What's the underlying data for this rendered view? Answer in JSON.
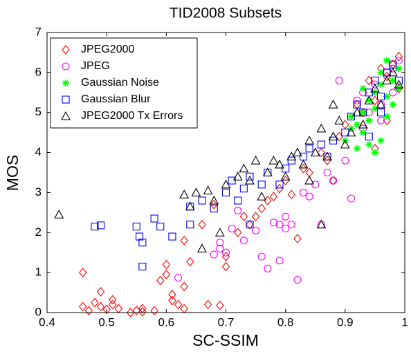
{
  "chart_data": {
    "type": "scatter",
    "title": "TID2008 Subsets",
    "x_label": "SC-SSIM",
    "y_label": "MOS",
    "xlim": [
      0.4,
      1
    ],
    "ylim": [
      0,
      7
    ],
    "xticks": [
      0.4,
      0.5,
      0.6,
      0.7,
      0.8,
      0.9,
      1
    ],
    "yticks": [
      0,
      1,
      2,
      3,
      4,
      5,
      6,
      7
    ],
    "legend": "upper left",
    "series": [
      {
        "name": "JPEG2000",
        "color": "#ff0000",
        "marker": "diamond",
        "x": [
          0.46,
          0.46,
          0.47,
          0.48,
          0.49,
          0.49,
          0.5,
          0.51,
          0.51,
          0.52,
          0.54,
          0.55,
          0.56,
          0.56,
          0.58,
          0.59,
          0.6,
          0.6,
          0.61,
          0.61,
          0.62,
          0.63,
          0.63,
          0.64,
          0.67,
          0.69,
          0.63,
          0.66,
          0.68,
          0.7,
          0.7,
          0.72,
          0.73,
          0.75,
          0.76,
          0.78,
          0.79,
          0.8,
          0.82,
          0.83,
          0.84,
          0.86,
          0.88,
          0.89,
          0.9,
          0.92,
          0.93,
          0.94,
          0.95,
          0.96,
          0.97,
          0.98,
          0.99,
          0.99,
          0.97,
          0.95,
          0.87,
          0.81,
          0.77,
          0.74
        ],
        "values": [
          1.0,
          0.15,
          0.05,
          0.25,
          0.52,
          0.15,
          0.08,
          0.2,
          0.32,
          0.1,
          0.0,
          0.05,
          0.1,
          0.02,
          0.05,
          0.8,
          0.95,
          1.2,
          0.45,
          0.3,
          0.2,
          0.1,
          0.65,
          1.27,
          0.2,
          0.18,
          1.8,
          2.2,
          2.7,
          1.15,
          1.4,
          2.0,
          2.4,
          2.4,
          2.6,
          2.9,
          3.1,
          3.3,
          1.85,
          3.6,
          3.5,
          4.0,
          3.3,
          4.4,
          4.7,
          5.2,
          5.0,
          5.8,
          5.3,
          6.1,
          5.9,
          6.2,
          6.4,
          5.6,
          4.8,
          4.1,
          3.8,
          2.95,
          2.8,
          2.2
        ]
      },
      {
        "name": "JPEG",
        "color": "#ff00ff",
        "marker": "circle",
        "x": [
          0.62,
          0.68,
          0.69,
          0.69,
          0.7,
          0.71,
          0.72,
          0.73,
          0.75,
          0.76,
          0.77,
          0.78,
          0.79,
          0.79,
          0.8,
          0.81,
          0.82,
          0.83,
          0.85,
          0.86,
          0.88,
          0.87,
          0.9,
          0.91,
          0.89,
          0.92,
          0.93,
          0.94,
          0.95,
          0.96,
          0.97,
          0.98,
          0.99,
          0.93,
          0.84,
          0.8,
          0.96,
          0.98
        ],
        "values": [
          0.87,
          1.45,
          1.6,
          1.75,
          1.5,
          2.1,
          2.55,
          1.8,
          2.05,
          1.4,
          1.1,
          2.25,
          1.3,
          2.2,
          2.1,
          2.2,
          0.82,
          3.0,
          3.2,
          2.2,
          3.3,
          3.5,
          3.8,
          2.85,
          5.8,
          5.3,
          5.5,
          5.0,
          5.7,
          5.2,
          6.0,
          6.1,
          6.3,
          4.6,
          2.9,
          2.4,
          4.8,
          5.5
        ]
      },
      {
        "name": "Gaussian Noise",
        "color": "#00ff00",
        "marker": "asterisk",
        "x": [
          0.9,
          0.91,
          0.91,
          0.92,
          0.92,
          0.93,
          0.93,
          0.94,
          0.94,
          0.95,
          0.95,
          0.96,
          0.96,
          0.96,
          0.97,
          0.97,
          0.98,
          0.98,
          0.99,
          0.99,
          0.95,
          0.94,
          0.97,
          0.93
        ],
        "values": [
          4.3,
          4.6,
          4.9,
          4.1,
          4.7,
          5.0,
          4.5,
          5.3,
          4.8,
          5.5,
          5.1,
          5.7,
          6.0,
          4.3,
          5.4,
          6.3,
          5.8,
          5.2,
          6.1,
          5.6,
          4.0,
          4.2,
          4.9,
          5.6
        ]
      },
      {
        "name": "Gaussian Blur",
        "color": "#0000ff",
        "marker": "square",
        "x": [
          0.48,
          0.49,
          0.55,
          0.555,
          0.56,
          0.56,
          0.58,
          0.59,
          0.61,
          0.64,
          0.64,
          0.66,
          0.68,
          0.7,
          0.71,
          0.72,
          0.73,
          0.74,
          0.74,
          0.76,
          0.77,
          0.79,
          0.8,
          0.81,
          0.83,
          0.84,
          0.86,
          0.87,
          0.88,
          0.9,
          0.91,
          0.92,
          0.93,
          0.94,
          0.95,
          0.96,
          0.97,
          0.98,
          0.99,
          0.96,
          0.94
        ],
        "values": [
          2.15,
          2.18,
          2.15,
          1.9,
          1.75,
          1.15,
          2.35,
          2.15,
          1.9,
          2.65,
          2.2,
          2.8,
          2.6,
          3.0,
          3.3,
          2.8,
          3.1,
          2.2,
          3.4,
          3.2,
          3.5,
          3.2,
          3.6,
          3.8,
          3.9,
          4.1,
          4.2,
          3.9,
          4.3,
          4.5,
          4.9,
          5.2,
          5.0,
          5.5,
          5.8,
          5.4,
          6.0,
          6.2,
          5.8,
          5.0,
          4.4
        ]
      },
      {
        "name": "JPEG2000 Tx Errors",
        "color": "#000000",
        "marker": "triangle",
        "x": [
          0.42,
          0.63,
          0.64,
          0.65,
          0.66,
          0.67,
          0.68,
          0.69,
          0.7,
          0.72,
          0.73,
          0.74,
          0.75,
          0.77,
          0.79,
          0.8,
          0.81,
          0.82,
          0.83,
          0.84,
          0.85,
          0.86,
          0.86,
          0.87,
          0.88,
          0.89,
          0.9,
          0.91,
          0.92,
          0.93,
          0.94,
          0.95,
          0.96,
          0.97,
          0.98,
          0.99,
          0.88,
          0.76,
          0.78,
          0.84
        ],
        "values": [
          2.45,
          2.95,
          2.65,
          3.0,
          1.6,
          3.05,
          2.8,
          2.0,
          3.2,
          3.4,
          3.6,
          3.3,
          3.8,
          3.5,
          3.7,
          3.4,
          3.9,
          4.0,
          3.7,
          4.3,
          4.0,
          2.2,
          4.6,
          3.9,
          4.4,
          4.8,
          4.2,
          4.5,
          5.0,
          4.7,
          5.3,
          5.6,
          5.2,
          5.8,
          6.0,
          5.7,
          5.2,
          2.9,
          3.8,
          3.3
        ]
      }
    ]
  }
}
